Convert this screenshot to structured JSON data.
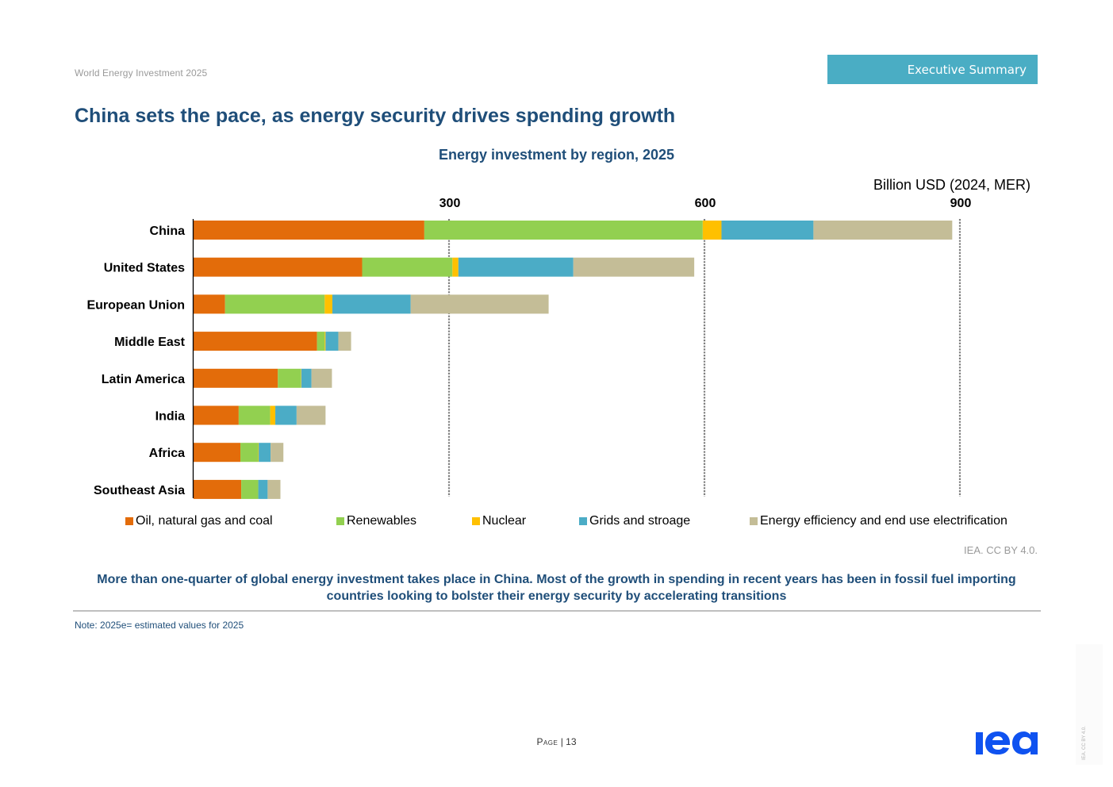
{
  "header": {
    "report_title": "World Energy Investment 2025",
    "section": "Executive Summary"
  },
  "page_title": "China sets the pace, as energy security drives spending growth",
  "chart_data": {
    "type": "bar",
    "orientation": "horizontal",
    "stacked": true,
    "title": "Energy investment by region, 2025",
    "unit_label": "Billion USD (2024, MER)",
    "xlabel": "",
    "ylabel": "",
    "xlim": [
      0,
      900
    ],
    "xticks": [
      300,
      600,
      900
    ],
    "xtick_labels": [
      "300",
      "600",
      "900"
    ],
    "grid": "vertical-dashed",
    "legend_position": "bottom",
    "categories": [
      "China",
      "United States",
      "European Union",
      "Middle East",
      "Latin America",
      "India",
      "Africa",
      "Southeast Asia"
    ],
    "series": [
      {
        "name": "Oil, natural gas and coal",
        "color": "#e36c0a",
        "values": [
          271,
          198,
          37,
          145,
          99,
          53,
          55,
          56
        ]
      },
      {
        "name": "Renewables",
        "color": "#92d050",
        "values": [
          327,
          106,
          117,
          9,
          27,
          37,
          21,
          20
        ]
      },
      {
        "name": "Nuclear",
        "color": "#ffc000",
        "values": [
          22,
          7,
          9,
          1,
          0.5,
          6,
          0.5,
          0
        ]
      },
      {
        "name": "Grids and stroage",
        "color": "#4bacc6",
        "values": [
          108,
          135,
          92,
          15,
          12,
          25,
          14,
          11
        ]
      },
      {
        "name": "Energy efficiency and end use electrification",
        "color": "#c4bd97",
        "values": [
          163,
          142,
          162,
          15,
          24,
          34,
          15,
          15
        ]
      }
    ]
  },
  "credit": "IEA. CC BY 4.0.",
  "caption": "More than one-quarter of global energy investment takes place in China. Most of the growth in spending in recent years has been in fossil fuel importing countries looking to bolster their energy security by accelerating transitions",
  "note": "Note: 2025e= estimated values for 2025",
  "footer": {
    "page_label": "Page",
    "page_number": "13",
    "logo_text": "iea",
    "side_credit": "IEA. CC BY 4.0."
  },
  "colors": {
    "title": "#1f4e79",
    "section_tab": "#4aadc4",
    "logo": "#0f52f0"
  }
}
